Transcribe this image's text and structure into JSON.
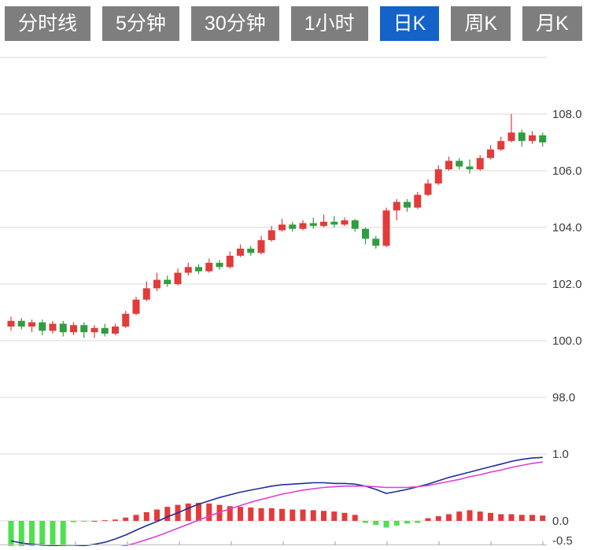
{
  "toolbar": {
    "buttons": [
      {
        "label": "分时线",
        "active": false
      },
      {
        "label": "5分钟",
        "active": false
      },
      {
        "label": "30分钟",
        "active": false
      },
      {
        "label": "1小时",
        "active": false
      },
      {
        "label": "日K",
        "active": true
      },
      {
        "label": "周K",
        "active": false
      },
      {
        "label": "月K",
        "active": false
      }
    ]
  },
  "colors": {
    "button_bg": "#7e7e7e",
    "button_active_bg": "#1463c8",
    "button_text": "#ffffff",
    "grid": "#d9d9d9",
    "axis_text": "#3c3c3c",
    "background": "#ffffff"
  },
  "chart_data": {
    "type": "candlestick",
    "subpanel_type": "macd",
    "grid": true,
    "legend_position": "none",
    "main": {
      "y_axis": [
        {
          "label": "108.0",
          "value": 108
        },
        {
          "label": "106.0",
          "value": 106
        },
        {
          "label": "104.0",
          "value": 104
        },
        {
          "label": "102.0",
          "value": 102
        },
        {
          "label": "100.0",
          "value": 100
        },
        {
          "label": "98.0",
          "value": 98
        }
      ],
      "grid_values": [
        110,
        108,
        106,
        104,
        102,
        100,
        98
      ],
      "ylim": [
        97.5,
        110
      ],
      "up_color": "#e23b3b",
      "down_color": "#2f9e41",
      "candles": [
        [
          100.5,
          100.85,
          100.35,
          100.7
        ],
        [
          100.7,
          100.8,
          100.4,
          100.5
        ],
        [
          100.5,
          100.75,
          100.3,
          100.65
        ],
        [
          100.65,
          100.75,
          100.2,
          100.35
        ],
        [
          100.35,
          100.7,
          100.25,
          100.6
        ],
        [
          100.6,
          100.7,
          100.15,
          100.3
        ],
        [
          100.3,
          100.65,
          100.2,
          100.55
        ],
        [
          100.55,
          100.65,
          100.1,
          100.3
        ],
        [
          100.3,
          100.55,
          100.1,
          100.45
        ],
        [
          100.45,
          100.6,
          100.15,
          100.25
        ],
        [
          100.25,
          100.6,
          100.2,
          100.5
        ],
        [
          100.5,
          101.05,
          100.45,
          100.95
        ],
        [
          100.95,
          101.55,
          100.9,
          101.45
        ],
        [
          101.45,
          102.1,
          101.4,
          101.85
        ],
        [
          101.85,
          102.4,
          101.75,
          102.15
        ],
        [
          102.15,
          102.3,
          101.9,
          102.0
        ],
        [
          102.0,
          102.55,
          101.95,
          102.4
        ],
        [
          102.4,
          102.75,
          102.3,
          102.6
        ],
        [
          102.6,
          102.7,
          102.35,
          102.45
        ],
        [
          102.45,
          102.9,
          102.4,
          102.75
        ],
        [
          102.75,
          102.85,
          102.5,
          102.6
        ],
        [
          102.6,
          103.15,
          102.55,
          103.0
        ],
        [
          103.0,
          103.4,
          102.95,
          103.25
        ],
        [
          103.25,
          103.35,
          103.0,
          103.1
        ],
        [
          103.1,
          103.7,
          103.05,
          103.55
        ],
        [
          103.55,
          104.05,
          103.5,
          103.9
        ],
        [
          103.9,
          104.3,
          103.85,
          104.1
        ],
        [
          104.1,
          104.2,
          103.85,
          103.95
        ],
        [
          103.95,
          104.25,
          103.9,
          104.15
        ],
        [
          104.15,
          104.35,
          103.95,
          104.05
        ],
        [
          104.05,
          104.45,
          104.0,
          104.2
        ],
        [
          104.2,
          104.4,
          104.0,
          104.1
        ],
        [
          104.1,
          104.35,
          104.05,
          104.25
        ],
        [
          104.25,
          104.3,
          103.85,
          103.95
        ],
        [
          103.95,
          104.0,
          103.4,
          103.6
        ],
        [
          103.6,
          103.7,
          103.25,
          103.35
        ],
        [
          103.35,
          104.7,
          103.3,
          104.6
        ],
        [
          104.6,
          105.0,
          104.25,
          104.9
        ],
        [
          104.9,
          105.0,
          104.55,
          104.7
        ],
        [
          104.7,
          105.25,
          104.65,
          105.15
        ],
        [
          105.15,
          105.7,
          105.1,
          105.55
        ],
        [
          105.55,
          106.2,
          105.5,
          106.05
        ],
        [
          106.05,
          106.5,
          106.0,
          106.35
        ],
        [
          106.35,
          106.45,
          106.05,
          106.15
        ],
        [
          106.15,
          106.4,
          105.9,
          106.05
        ],
        [
          106.05,
          106.55,
          106.0,
          106.45
        ],
        [
          106.45,
          106.9,
          106.4,
          106.75
        ],
        [
          106.75,
          107.2,
          106.7,
          107.05
        ],
        [
          107.05,
          108.0,
          107.0,
          107.35
        ],
        [
          107.35,
          107.45,
          106.85,
          107.05
        ],
        [
          107.05,
          107.4,
          106.95,
          107.25
        ],
        [
          107.25,
          107.35,
          106.85,
          107.0
        ]
      ]
    },
    "macd": {
      "y_axis": [
        {
          "label": "1.0",
          "value": 1.0
        },
        {
          "label": "0.0",
          "value": 0.0
        },
        {
          "label": "-0.5",
          "value": -0.5
        }
      ],
      "grid_values": [
        1.0,
        0.0
      ],
      "ylim": [
        -0.5,
        1.1
      ],
      "dif_color": "#1f2d9b",
      "dea_color": "#e040d0",
      "hist_up_color": "#e23b3b",
      "hist_down_color": "#4fe04f",
      "dif": [
        -0.3,
        -0.33,
        -0.35,
        -0.36,
        -0.37,
        -0.38,
        -0.38,
        -0.37,
        -0.35,
        -0.32,
        -0.27,
        -0.21,
        -0.14,
        -0.07,
        -0.01,
        0.06,
        0.12,
        0.19,
        0.25,
        0.3,
        0.35,
        0.39,
        0.43,
        0.46,
        0.49,
        0.52,
        0.54,
        0.55,
        0.56,
        0.57,
        0.57,
        0.56,
        0.56,
        0.55,
        0.52,
        0.47,
        0.41,
        0.44,
        0.47,
        0.51,
        0.55,
        0.6,
        0.65,
        0.69,
        0.73,
        0.77,
        0.81,
        0.85,
        0.89,
        0.92,
        0.94,
        0.95
      ],
      "dea": [
        -0.42,
        -0.43,
        -0.44,
        -0.45,
        -0.45,
        -0.45,
        -0.45,
        -0.44,
        -0.43,
        -0.42,
        -0.4,
        -0.37,
        -0.33,
        -0.28,
        -0.23,
        -0.17,
        -0.11,
        -0.05,
        0.01,
        0.07,
        0.13,
        0.18,
        0.23,
        0.28,
        0.32,
        0.36,
        0.4,
        0.43,
        0.46,
        0.48,
        0.5,
        0.51,
        0.52,
        0.52,
        0.52,
        0.51,
        0.5,
        0.5,
        0.5,
        0.51,
        0.53,
        0.56,
        0.59,
        0.62,
        0.66,
        0.69,
        0.73,
        0.76,
        0.8,
        0.83,
        0.86,
        0.88
      ],
      "histogram": [
        -0.38,
        -0.41,
        -0.43,
        -0.44,
        -0.43,
        -0.4,
        -0.02,
        -0.01,
        0.0,
        0.01,
        0.02,
        0.05,
        0.09,
        0.13,
        0.17,
        0.21,
        0.24,
        0.26,
        0.27,
        0.26,
        0.24,
        0.22,
        0.21,
        0.2,
        0.19,
        0.19,
        0.18,
        0.17,
        0.17,
        0.16,
        0.15,
        0.14,
        0.12,
        0.09,
        -0.03,
        -0.06,
        -0.1,
        -0.07,
        -0.04,
        -0.03,
        0.04,
        0.07,
        0.1,
        0.14,
        0.16,
        0.14,
        0.12,
        0.1,
        0.1,
        0.09,
        0.09,
        0.08
      ]
    }
  }
}
